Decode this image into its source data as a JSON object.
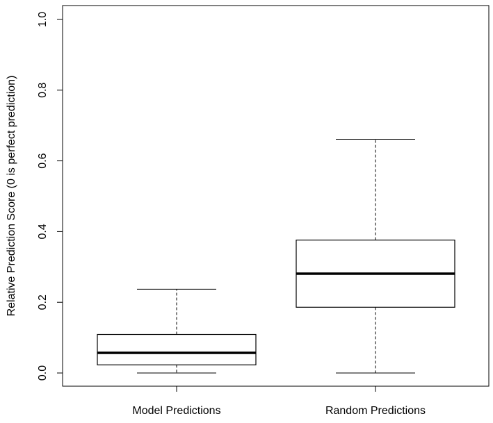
{
  "chart_data": {
    "type": "box",
    "title": "",
    "xlabel": "",
    "ylabel": "Relative Prediction Score (0 is perfect prediction)",
    "ylim": [
      0,
      1.0
    ],
    "yticks": [
      "0.0",
      "0.2",
      "0.4",
      "0.6",
      "0.8",
      "1.0"
    ],
    "grid": false,
    "categories": [
      "Model Predictions",
      "Random Predictions"
    ],
    "boxes": [
      {
        "whisker_low": 0.0,
        "q1": 0.023,
        "median": 0.057,
        "q3": 0.109,
        "whisker_high": 0.237
      },
      {
        "whisker_low": 0.0,
        "q1": 0.186,
        "median": 0.281,
        "q3": 0.376,
        "whisker_high": 0.661
      }
    ]
  }
}
